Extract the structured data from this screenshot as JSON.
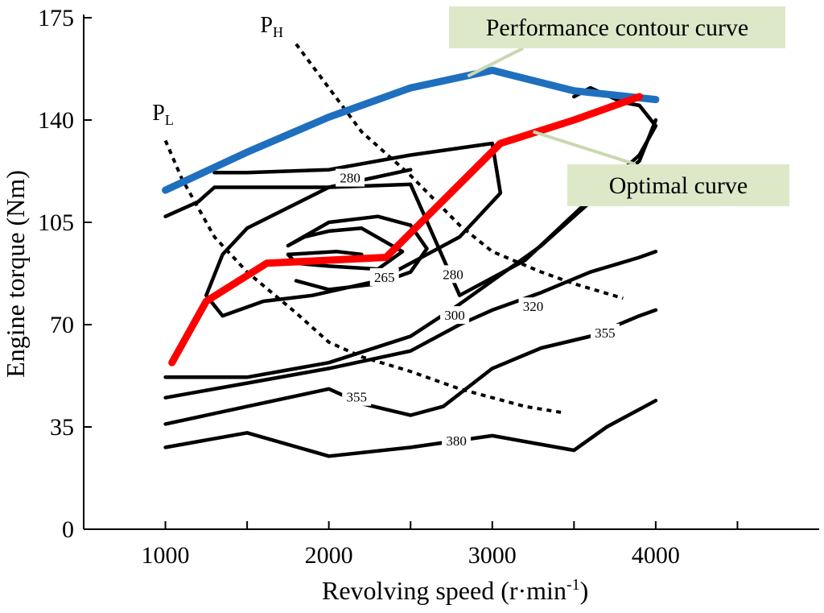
{
  "chart_data": {
    "type": "line",
    "title": "",
    "xlabel": "Revolving speed (r·min",
    "xlabel_sup": "-1",
    "xlabel_end": ")",
    "ylabel": "Engine torque (Nm)",
    "xlim": [
      500,
      5000
    ],
    "ylim": [
      0,
      175
    ],
    "x_ticks": [
      "1000",
      "2000",
      "3000",
      "4000"
    ],
    "y_ticks": [
      "0",
      "35",
      "70",
      "105",
      "140",
      "175"
    ],
    "series": [
      {
        "name": "Performance contour curve",
        "color": "#1f6fbf",
        "x": [
          1000,
          1500,
          2000,
          2500,
          3000,
          3500,
          4000
        ],
        "y": [
          116,
          129,
          141,
          151,
          157,
          150,
          147
        ]
      },
      {
        "name": "Optimal curve",
        "color": "#ff0000",
        "x": [
          1040,
          1250,
          1620,
          2350,
          3050,
          3500,
          3900
        ],
        "y": [
          57,
          78,
          91,
          93,
          132,
          140,
          148
        ]
      },
      {
        "name": "PH",
        "style": "dotted",
        "x": [
          1800,
          2000,
          2200,
          2500,
          2800,
          3000,
          3300,
          3500,
          3800
        ],
        "y": [
          166,
          151,
          136,
          121,
          104,
          95,
          88,
          84,
          79
        ]
      },
      {
        "name": "PL",
        "style": "dotted",
        "x": [
          1000,
          1100,
          1300,
          1500,
          1800,
          2000,
          2200,
          2500,
          2800,
          3000,
          3200,
          3420
        ],
        "y": [
          133,
          120,
          100,
          88,
          74,
          64,
          59,
          54,
          48,
          45,
          42,
          40
        ]
      }
    ],
    "contours": [
      {
        "value": "265",
        "x": [
          1800,
          2000,
          2300,
          2500,
          2600,
          2500,
          2300,
          2000,
          1750,
          1850,
          2000,
          2200,
          2450,
          2300,
          2000,
          1800,
          1750,
          2050,
          2200
        ],
        "y": [
          85,
          82,
          84,
          88,
          96,
          104,
          107,
          105,
          97,
          100,
          102,
          103,
          95,
          89,
          90,
          91,
          94,
          95,
          94
        ]
      },
      {
        "value": "280",
        "x": [
          1300,
          1500,
          2000,
          2500,
          3000,
          3050,
          2800,
          2300,
          1900,
          1600,
          1350,
          1250,
          1350,
          1500,
          2000,
          2500
        ],
        "y": [
          122,
          122,
          123,
          128,
          132,
          115,
          100,
          85,
          80,
          78,
          73,
          80,
          94,
          103,
          117,
          123
        ]
      },
      {
        "value": "280",
        "x": [
          1000,
          1200,
          1300,
          1600,
          2000,
          2500,
          2800,
          3200,
          3600,
          3900,
          4000,
          3900,
          3800,
          3600,
          3500
        ],
        "y": [
          107,
          112,
          117,
          117,
          117,
          118,
          80,
          92,
          113,
          128,
          138,
          145,
          146,
          151,
          148
        ]
      },
      {
        "value": "300",
        "x": [
          1000,
          1500,
          2000,
          2500,
          2800,
          3000,
          3300,
          3600,
          3900,
          4000
        ],
        "y": [
          52,
          52,
          57,
          66,
          77,
          85,
          97,
          112,
          126,
          140
        ]
      },
      {
        "value": "320",
        "x": [
          1000,
          1500,
          2000,
          2500,
          2800,
          3000,
          3300,
          3600,
          3900,
          4000
        ],
        "y": [
          45,
          50,
          55,
          61,
          70,
          75,
          81,
          88,
          93,
          95
        ]
      },
      {
        "value": "355",
        "x": [
          1000,
          1500,
          2000,
          2200,
          2500,
          2700,
          3000,
          3300,
          3600,
          3900,
          4000
        ],
        "y": [
          36,
          42,
          48,
          43,
          39,
          42,
          55,
          62,
          66,
          73,
          75
        ]
      },
      {
        "value": "380",
        "x": [
          1000,
          1500,
          2000,
          2500,
          3000,
          3500,
          3700,
          4000
        ],
        "y": [
          28,
          33,
          25,
          28,
          32,
          27,
          35,
          44
        ]
      }
    ],
    "contour_labels": [
      {
        "text": "280",
        "x": 2130,
        "y": 120
      },
      {
        "text": "265",
        "x": 2340,
        "y": 86
      },
      {
        "text": "280",
        "x": 2760,
        "y": 87
      },
      {
        "text": "300",
        "x": 2770,
        "y": 73
      },
      {
        "text": "320",
        "x": 3250,
        "y": 76
      },
      {
        "text": "355",
        "x": 3690,
        "y": 67
      },
      {
        "text": "355",
        "x": 2170,
        "y": 45
      },
      {
        "text": "380",
        "x": 2780,
        "y": 30
      }
    ],
    "annotations": [
      {
        "text": "Performance contour curve",
        "target_x": 2850,
        "target_y": 155
      },
      {
        "text": "Optimal curve",
        "target_x": 3250,
        "target_y": 136
      }
    ],
    "line_labels": [
      {
        "text": "P",
        "sub": "H",
        "x": 1580,
        "y": 170
      },
      {
        "text": "P",
        "sub": "L",
        "x": 920,
        "y": 140
      }
    ]
  }
}
